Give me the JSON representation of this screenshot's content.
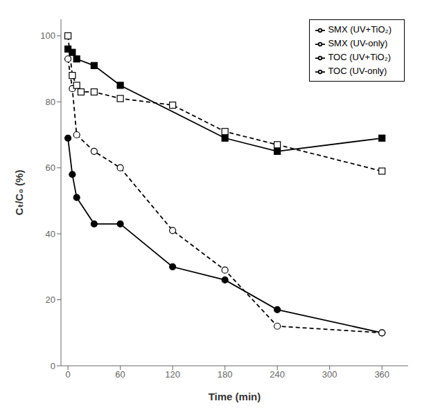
{
  "chart_data": {
    "type": "line",
    "xlabel": "Time (min)",
    "ylabel": "Cₜ/C₀ (%)",
    "xlim": [
      -8,
      390
    ],
    "ylim": [
      0,
      105
    ],
    "xticks": [
      0,
      60,
      120,
      180,
      240,
      300,
      360
    ],
    "yticks": [
      0,
      20,
      40,
      60,
      80,
      100
    ],
    "grid": false,
    "legend": "upper right",
    "series": [
      {
        "name": "SMX (UV-only)",
        "color": "black",
        "marker": "circle",
        "line_style": "solid",
        "x": [
          0,
          5,
          10,
          30,
          60,
          120,
          180,
          240,
          360
        ],
        "values": [
          69,
          58,
          51,
          43,
          43,
          30,
          26,
          17,
          10
        ]
      },
      {
        "name": "TOC (UV-only)",
        "color": "black",
        "marker": "square",
        "line_style": "solid",
        "x": [
          0,
          5,
          10,
          30,
          60,
          180,
          240,
          360
        ],
        "values": [
          96,
          95,
          93,
          91,
          85,
          69,
          65,
          69
        ]
      },
      {
        "name": "SMX (UV+TiO₂)",
        "color": "black",
        "marker": "open_circle",
        "line_style": "dashed",
        "x": [
          0,
          5,
          10,
          30,
          60,
          120,
          180,
          240,
          360
        ],
        "values": [
          93,
          84,
          70,
          65,
          60,
          41,
          29,
          12,
          10
        ]
      },
      {
        "name": "TOC (UV+TiO₂)",
        "color": "black",
        "marker": "open_square",
        "line_style": "dashed",
        "x": [
          0,
          5,
          10,
          15,
          30,
          60,
          120,
          180,
          240,
          360
        ],
        "values": [
          100,
          88,
          85,
          83,
          83,
          81,
          79,
          71,
          67,
          59
        ]
      }
    ]
  }
}
